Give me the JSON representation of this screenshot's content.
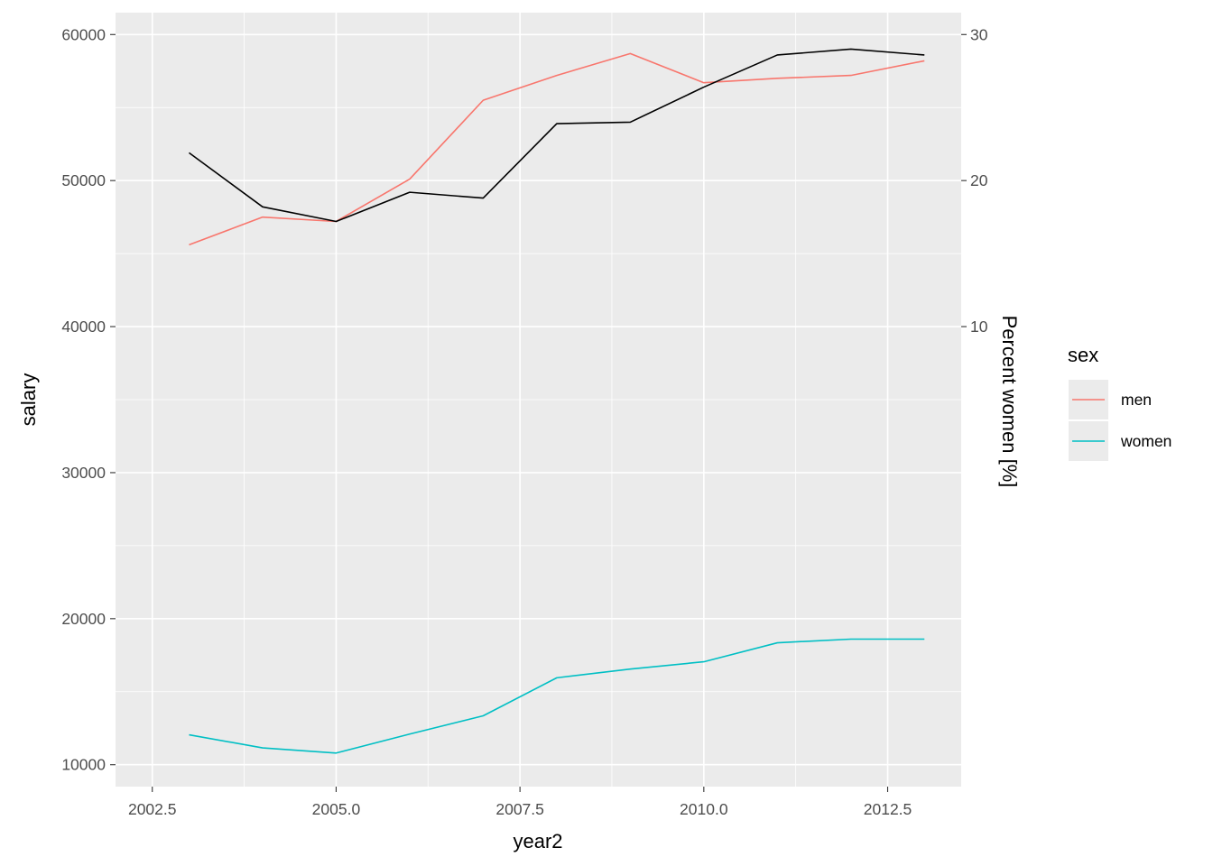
{
  "chart_data": {
    "type": "line",
    "xlabel": "year2",
    "ylabel": "salary",
    "y2label": "Percent women [%]",
    "xlim": [
      2002.0,
      2013.5
    ],
    "ylim": [
      8500,
      61500
    ],
    "x_ticks": [
      2002.5,
      2005.0,
      2007.5,
      2010.0,
      2012.5
    ],
    "x_tick_labels": [
      "2002.5",
      "2005.0",
      "2007.5",
      "2010.0",
      "2012.5"
    ],
    "y_ticks": [
      10000,
      20000,
      30000,
      40000,
      50000,
      60000
    ],
    "y_tick_labels": [
      "10000",
      "20000",
      "30000",
      "40000",
      "50000",
      "60000"
    ],
    "y2_ticks": [
      10,
      20,
      30
    ],
    "y2_tick_labels": [
      "10",
      "20",
      "30"
    ],
    "y2_to_y": {
      "scale": 1000,
      "offset": 30000
    },
    "grid": true,
    "legend": {
      "title": "sex",
      "position": "right"
    },
    "series": [
      {
        "name": "men",
        "color": "#F8766D",
        "axis": "left",
        "x": [
          2003,
          2004,
          2005,
          2006,
          2007,
          2008,
          2009,
          2010,
          2011,
          2012,
          2013
        ],
        "values": [
          45600,
          47500,
          47200,
          50100,
          55500,
          57200,
          58700,
          56700,
          57000,
          57200,
          58200
        ]
      },
      {
        "name": "women",
        "color": "#00BFC4",
        "axis": "left",
        "x": [
          2003,
          2004,
          2005,
          2006,
          2007,
          2008,
          2009,
          2010,
          2011,
          2012,
          2013
        ],
        "values": [
          12050,
          11150,
          10800,
          12100,
          13350,
          15950,
          16550,
          17050,
          18350,
          18600,
          18600
        ]
      },
      {
        "color": "#000000",
        "axis": "right",
        "x": [
          2003,
          2004,
          2005,
          2006,
          2007,
          2008,
          2009,
          2010,
          2011,
          2012,
          2013
        ],
        "values": [
          21.9,
          18.2,
          17.2,
          19.2,
          18.8,
          23.9,
          24.0,
          26.4,
          28.6,
          29.0,
          28.6
        ]
      }
    ]
  }
}
